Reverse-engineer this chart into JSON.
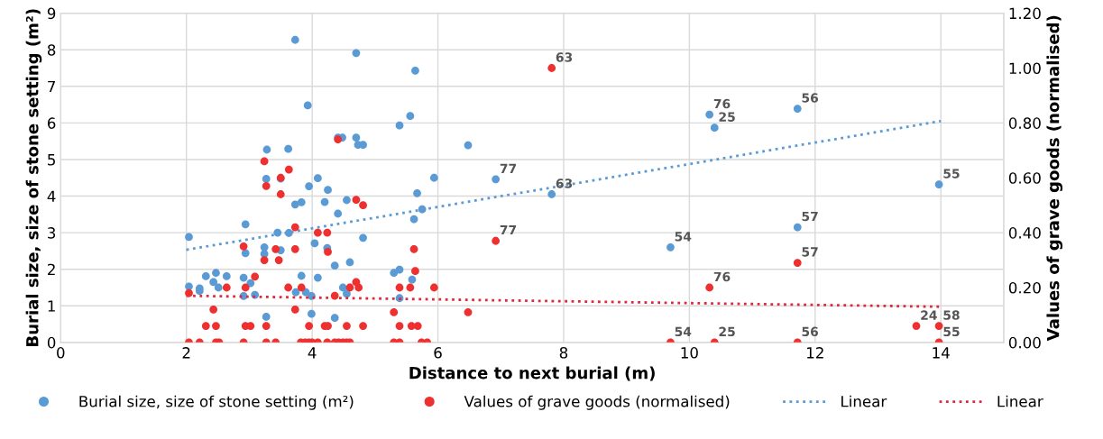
{
  "chart_data": {
    "type": "scatter",
    "xlabel": "Distance to next burial (m)",
    "ylabel": "Burial size, size of stone setting (m²)",
    "y2label": "Values of grave goods (normalised)",
    "xlim": [
      0,
      15
    ],
    "xticks": [
      0,
      2,
      4,
      6,
      8,
      10,
      12,
      14
    ],
    "ylim": [
      0,
      9
    ],
    "yticks": [
      0,
      1,
      2,
      3,
      4,
      5,
      6,
      7,
      8,
      9
    ],
    "y2lim": [
      0,
      1.2
    ],
    "y2ticks": [
      {
        "value": 0,
        "label": "0.00"
      },
      {
        "value": 0.2,
        "label": "0.20"
      },
      {
        "value": 0.4,
        "label": "0.40"
      },
      {
        "value": 0.6,
        "label": "0.60"
      },
      {
        "value": 0.8,
        "label": "0.80"
      },
      {
        "value": 1.0,
        "label": "1.00"
      },
      {
        "value": 1.2,
        "label": "1.20"
      }
    ],
    "grid": true,
    "legend": "bottom",
    "annotations": [
      {
        "text": "77",
        "x": 6.92,
        "y": 4.46
      },
      {
        "text": "63",
        "x": 7.81,
        "y": 4.05
      },
      {
        "text": "54",
        "x": 9.7,
        "y": 2.6
      },
      {
        "text": "76",
        "x": 10.32,
        "y": 6.23
      },
      {
        "text": "25",
        "x": 10.4,
        "y": 5.87
      },
      {
        "text": "56",
        "x": 11.72,
        "y": 6.39
      },
      {
        "text": "57",
        "x": 11.72,
        "y": 3.15
      },
      {
        "text": "55",
        "x": 13.97,
        "y": 4.32
      },
      {
        "text": "63",
        "x": 7.81,
        "y": 7.5
      },
      {
        "text": "77",
        "x": 6.92,
        "y": 2.78
      },
      {
        "text": "54",
        "x": 9.7,
        "y": 0
      },
      {
        "text": "76",
        "x": 10.32,
        "y": 1.5
      },
      {
        "text": "25",
        "x": 10.4,
        "y": 0
      },
      {
        "text": "57",
        "x": 11.72,
        "y": 2.18
      },
      {
        "text": "56",
        "x": 11.72,
        "y": 0
      },
      {
        "text": "24",
        "x": 13.61,
        "y": 0.45
      },
      {
        "text": "58",
        "x": 13.97,
        "y": 0.45
      },
      {
        "text": "55",
        "x": 13.97,
        "y": 0
      }
    ],
    "series": [
      {
        "name": "Burial size, size of stone setting (m²)",
        "axis": "y",
        "color": "#5b9bd5",
        "x": [
          2.04,
          2.04,
          2.21,
          2.21,
          2.31,
          2.47,
          2.43,
          2.51,
          2.64,
          2.91,
          2.94,
          2.94,
          2.91,
          3.02,
          3.09,
          3.28,
          3.27,
          3.24,
          3.24,
          3.27,
          3.5,
          3.62,
          3.45,
          3.63,
          3.5,
          3.73,
          3.93,
          3.73,
          3.83,
          3.95,
          4.09,
          4.25,
          4.2,
          4.04,
          4.24,
          3.83,
          4.09,
          3.74,
          3.9,
          3.99,
          3.99,
          4.7,
          5.64,
          5.56,
          5.39,
          4.41,
          4.48,
          4.7,
          4.73,
          4.81,
          5.94,
          5.67,
          5.75,
          5.62,
          4.55,
          4.41,
          4.81,
          4.36,
          4.6,
          5.3,
          5.39,
          5.59,
          4.49,
          4.55,
          5.39,
          4.36,
          6.48,
          6.92,
          7.81,
          9.7,
          10.32,
          10.4,
          11.72,
          11.72,
          13.97
        ],
        "values": [
          2.88,
          1.53,
          1.48,
          1.41,
          1.81,
          1.9,
          1.65,
          1.5,
          1.81,
          1.77,
          3.23,
          2.44,
          1.27,
          1.62,
          1.3,
          5.27,
          4.47,
          2.6,
          2.42,
          0.7,
          4.48,
          5.29,
          3.0,
          2.99,
          2.52,
          8.27,
          6.48,
          3.77,
          3.83,
          4.27,
          4.49,
          4.17,
          3.84,
          2.71,
          2.58,
          1.82,
          1.77,
          1.37,
          1.37,
          1.27,
          0.78,
          7.91,
          7.43,
          6.19,
          5.93,
          5.6,
          5.6,
          5.6,
          5.4,
          5.4,
          4.5,
          4.08,
          3.64,
          3.37,
          3.89,
          3.52,
          2.86,
          2.1,
          2.19,
          1.9,
          1.99,
          1.72,
          1.5,
          1.33,
          1.21,
          0.67,
          5.39,
          4.46,
          4.05,
          2.6,
          6.23,
          5.87,
          6.39,
          3.15,
          4.32
        ],
        "marker": "circle"
      },
      {
        "name": "Values of grave goods (normalised)",
        "axis": "y2",
        "color": "#ee3030",
        "x": [
          2.04,
          2.04,
          2.21,
          2.31,
          2.43,
          2.47,
          2.47,
          2.52,
          2.64,
          2.91,
          2.94,
          2.94,
          3.02,
          2.91,
          3.09,
          3.24,
          3.27,
          3.24,
          3.27,
          3.27,
          3.42,
          3.42,
          3.5,
          3.5,
          3.63,
          3.47,
          3.62,
          3.73,
          3.73,
          3.73,
          3.83,
          3.82,
          3.89,
          3.95,
          4.0,
          3.95,
          4.09,
          4.24,
          4.25,
          4.09,
          4.24,
          4.2,
          4.25,
          4.36,
          4.41,
          4.7,
          4.81,
          4.7,
          4.6,
          4.74,
          4.55,
          4.81,
          4.36,
          4.42,
          4.49,
          4.55,
          4.6,
          5.3,
          5.39,
          5.56,
          5.62,
          5.64,
          5.94,
          5.39,
          5.58,
          5.68,
          5.3,
          5.39,
          5.74,
          5.83,
          6.48,
          7.81,
          6.92,
          9.7,
          10.32,
          10.4,
          11.72,
          11.72,
          13.61,
          13.97,
          13.97
        ],
        "values": [
          0,
          0.18,
          0,
          0.06,
          0.12,
          0.06,
          0,
          0,
          0.2,
          0.35,
          0.2,
          0.06,
          0.06,
          0,
          0.24,
          0.66,
          0.57,
          0.3,
          0.06,
          0,
          0,
          0.34,
          0.6,
          0.54,
          0.63,
          0.3,
          0.2,
          0.42,
          0.34,
          0.12,
          0.2,
          0,
          0,
          0,
          0,
          0.06,
          0.4,
          0.4,
          0.33,
          0,
          0,
          0.06,
          0.06,
          0.17,
          0.74,
          0.52,
          0.5,
          0.22,
          0.2,
          0.2,
          0.06,
          0.06,
          0,
          0,
          0,
          0,
          0,
          0.11,
          0.2,
          0.2,
          0.34,
          0.26,
          0.2,
          0.06,
          0.06,
          0.06,
          0,
          0,
          0,
          0,
          0.11,
          1.0,
          0.37,
          0,
          0.2,
          0,
          0.29,
          0,
          0.06,
          0.06,
          0
        ],
        "marker": "circle"
      },
      {
        "name": "Linear",
        "type": "line",
        "axis": "y",
        "color": "#5b9bd5",
        "line_style": "dotted",
        "marker": "none",
        "x": [
          2,
          14
        ],
        "values": [
          2.53,
          6.05
        ]
      },
      {
        "name": "Linear",
        "type": "line",
        "axis": "y2",
        "color": "#e0283c",
        "line_style": "dotted",
        "marker": "none",
        "x": [
          2,
          14
        ],
        "values": [
          0.17,
          0.13
        ]
      }
    ]
  }
}
